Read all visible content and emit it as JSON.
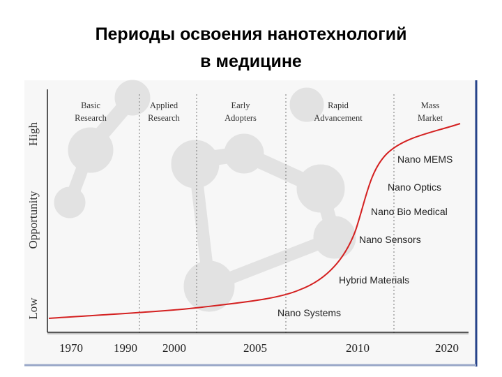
{
  "header": {
    "title_lines": [
      "Периоды освоения нанотехнологий",
      "в медицине"
    ]
  },
  "phases": [
    [
      "Basic",
      "Research"
    ],
    [
      "Applied",
      "Research"
    ],
    [
      "Early",
      "Adopters"
    ],
    [
      "Rapid",
      "Advancement"
    ],
    [
      "Mass",
      "Market"
    ]
  ],
  "y_axis": {
    "low": "Low",
    "label": "Opportunity",
    "high": "High"
  },
  "x_axis": {
    "labels": [
      "1970",
      "1990",
      "2000",
      "2005",
      "2010",
      "2020"
    ]
  },
  "curve_labels": [
    "Nano MEMS",
    "Nano Optics",
    "Nano Bio Medical",
    "Nano Sensors",
    "Hybrid Materials",
    "Nano Systems"
  ]
}
